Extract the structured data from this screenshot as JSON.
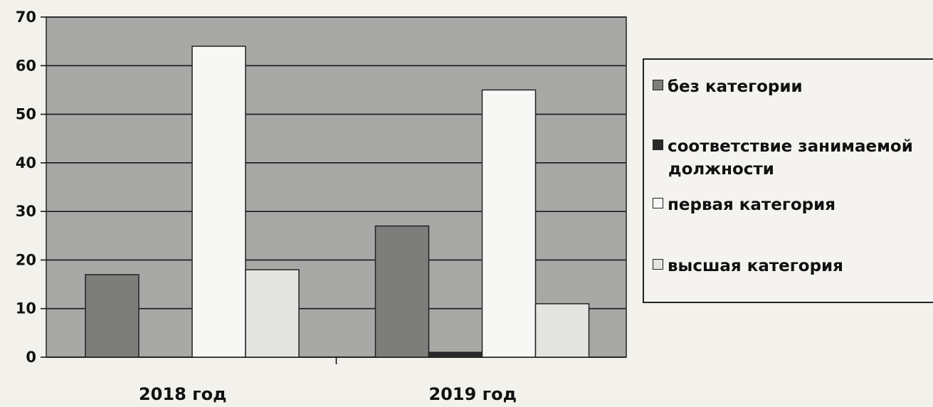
{
  "chart_data": {
    "type": "bar",
    "title": "",
    "xlabel": "",
    "ylabel": "",
    "categories": [
      "2018 год",
      "2019 год"
    ],
    "ylim": [
      0,
      70
    ],
    "yticks": [
      0,
      10,
      20,
      30,
      40,
      50,
      60,
      70
    ],
    "grid": true,
    "legend_position": "right",
    "plot_background": "#a8a8a6",
    "series": [
      {
        "name": "без категории",
        "values": [
          17,
          27
        ],
        "color": "#7d7d7b"
      },
      {
        "name": "соответствие занимаемой должности",
        "values": [
          0,
          1
        ],
        "color": "#2a2a2a"
      },
      {
        "name": "первая категория",
        "values": [
          64,
          55
        ],
        "color": "#f7f7f5"
      },
      {
        "name": "высшая категория",
        "values": [
          18,
          11
        ],
        "color": "#e4e4e2"
      }
    ]
  },
  "legend": {
    "items": [
      {
        "lines": [
          "без категории"
        ]
      },
      {
        "lines": [
          "соответствие занимаемой",
          "должности"
        ]
      },
      {
        "lines": [
          "первая категория"
        ]
      },
      {
        "lines": [
          "высшая категория"
        ]
      }
    ]
  }
}
